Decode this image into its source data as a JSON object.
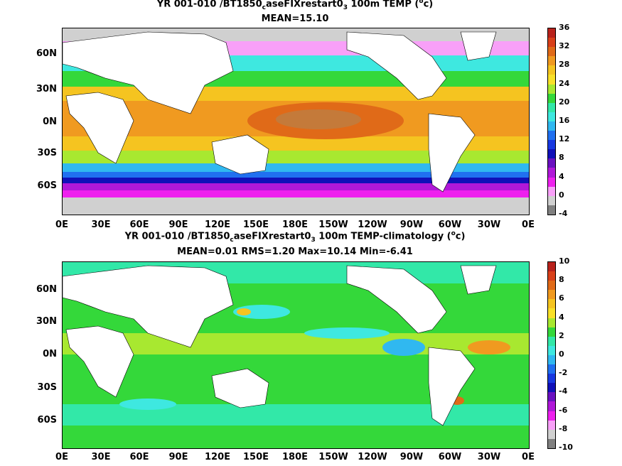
{
  "panel1": {
    "title_main": "YR 001-010 /BT1850",
    "title_sub_c": "c",
    "title_mid": "aseFIXrestart0",
    "title_sub_3": "3",
    "title_tail": " 100m TEMP (",
    "title_sup_o": "o",
    "title_unit": "c)",
    "stats": "MEAN=15.10",
    "colorbar_labels": [
      "36",
      "32",
      "28",
      "24",
      "20",
      "16",
      "12",
      "8",
      "4",
      "0",
      "-4"
    ],
    "colors": [
      "#b8221c",
      "#d8401a",
      "#e06a18",
      "#f09a20",
      "#f5c420",
      "#f8e028",
      "#a8e830",
      "#34d83a",
      "#32e8a8",
      "#3ee8e0",
      "#30b8f0",
      "#2070f0",
      "#1838e0",
      "#1010b8",
      "#6a10c0",
      "#b018d8",
      "#ee20ee",
      "#f8a0f8",
      "#d0d0d0",
      "#808080"
    ]
  },
  "panel2": {
    "title_main": "YR 001-010 /BT1850",
    "title_sub_c": "c",
    "title_mid": "aseFIXrestart0",
    "title_sub_3": "3",
    "title_tail": " 100m TEMP-climatology (",
    "title_sup_o": "o",
    "title_unit": "c)",
    "stats": "MEAN=0.01   RMS=1.20   Max=10.14   Min=-6.41",
    "colorbar_labels": [
      "10",
      "8",
      "6",
      "4",
      "2",
      "0",
      "-2",
      "-4",
      "-6",
      "-8",
      "-10"
    ],
    "colors": [
      "#b8221c",
      "#d8401a",
      "#e06a18",
      "#f09a20",
      "#f5c420",
      "#f8e028",
      "#a8e830",
      "#34d83a",
      "#32e8a8",
      "#3ee8e0",
      "#30b8f0",
      "#2070f0",
      "#1838e0",
      "#1010b8",
      "#6a10c0",
      "#b018d8",
      "#ee20ee",
      "#f8a0f8",
      "#d0d0d0",
      "#808080"
    ]
  },
  "lat_labels": [
    "60N",
    "30N",
    "0N",
    "30S",
    "60S"
  ],
  "lon_labels": [
    "0E",
    "30E",
    "60E",
    "90E",
    "120E",
    "150E",
    "180E",
    "150W",
    "120W",
    "90W",
    "60W",
    "30W",
    "0E"
  ]
}
